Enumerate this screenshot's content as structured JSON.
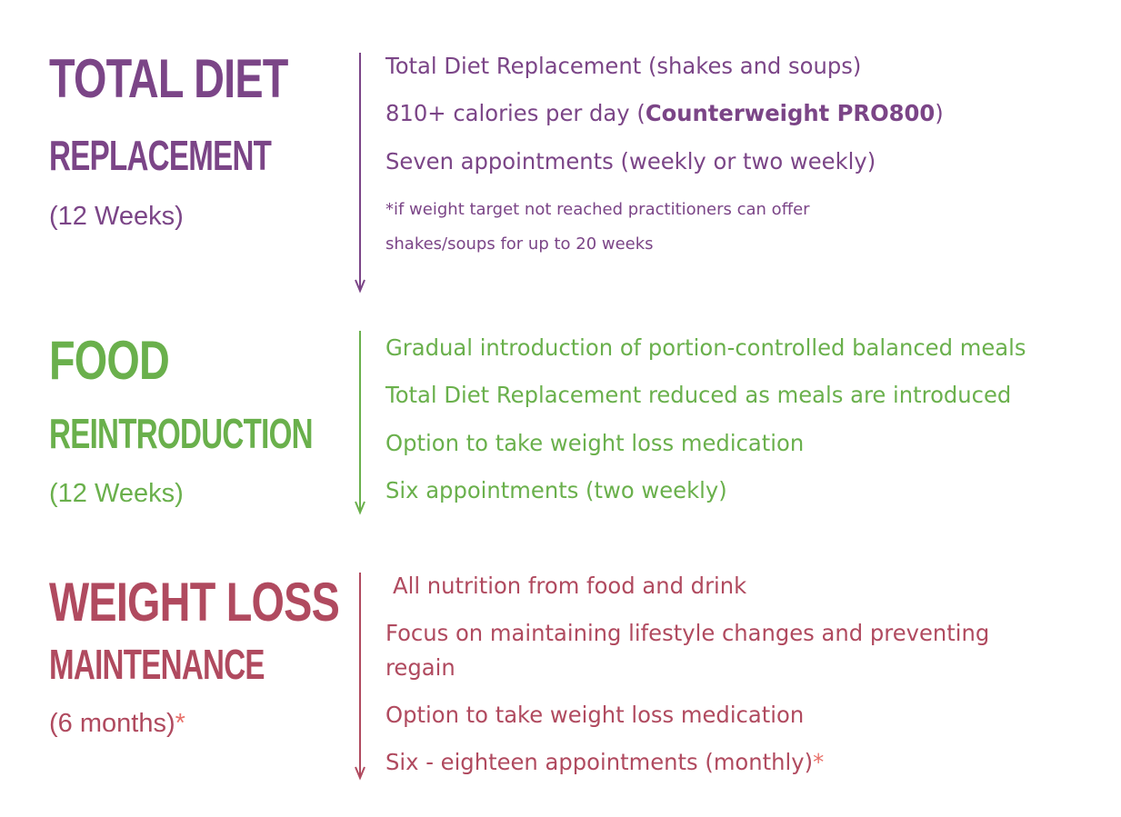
{
  "sections": [
    {
      "title_line1": "TOTAL DIET",
      "title_line2": "REPLACEMENT",
      "duration": "(12 Weeks)",
      "color": "#7b4587",
      "items": [
        "Total Diet Replacement (shakes and soups)",
        "810+ calories per day (",
        "Seven appointments (weekly or two weekly)"
      ],
      "item2_bold": "Counterweight PRO800",
      "item2_tail": ")",
      "note_line1": "*if weight target not reached practitioners can offer",
      "note_line2": "shakes/soups for up to 20 weeks"
    },
    {
      "title_line1": "FOOD",
      "title_line2": "REINTRODUCTION",
      "duration": "(12 Weeks)",
      "color": "#6ab04c",
      "items": [
        "Gradual introduction of portion-controlled balanced meals",
        "Total Diet Replacement reduced as meals are introduced",
        "Option to take weight loss medication",
        "Six appointments (two weekly)"
      ]
    },
    {
      "title_line1": "WEIGHT LOSS",
      "title_line2": "MAINTENANCE",
      "duration": "(6 months)",
      "duration_star": "*",
      "color": "#b04a5f",
      "star_color": "#e8716a",
      "items": [
        "All nutrition from food and drink",
        "Focus on maintaining lifestyle changes and preventing",
        "regain",
        "Option to take weight loss medication",
        "Six - eighteen appointments (monthly)"
      ],
      "last_item_star": "*"
    }
  ]
}
